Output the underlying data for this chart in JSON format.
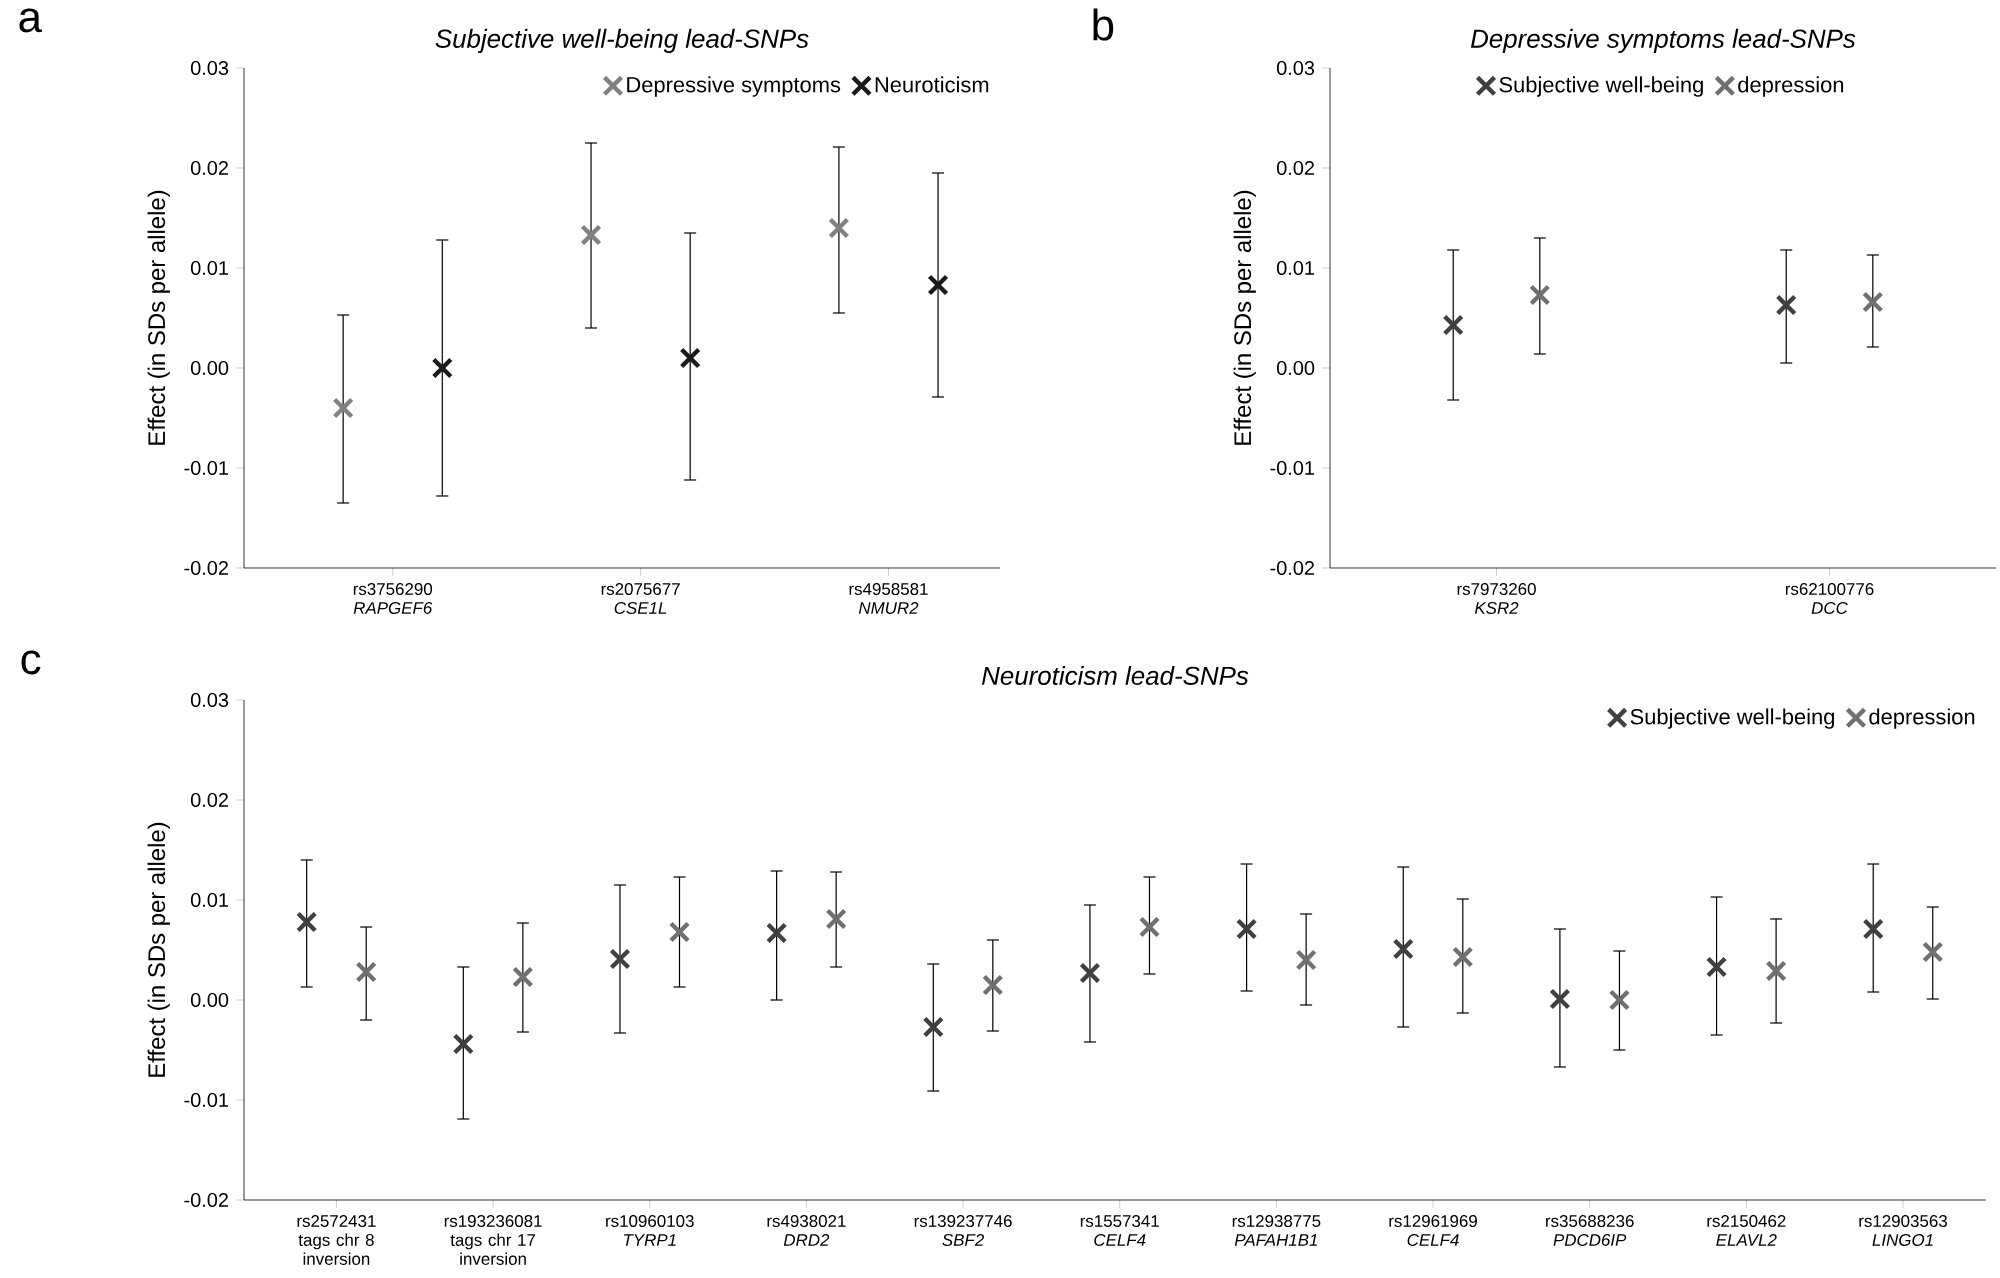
{
  "chart_data": [
    {
      "type": "scatter",
      "title": "Subjective well-being lead-SNPs",
      "ylabel": "Effect (in SDs per allele)",
      "annotations": [
        "a"
      ],
      "marker": "cross",
      "legend": "top right",
      "categories": [
        "rs3756290 *RAPGEF6*",
        "rs2075677 *CSE1L*",
        "rs4958581 *NMUR2*"
      ],
      "ylim": [
        -0.02,
        0.03
      ],
      "yticks": [
        {
          "value": -0.02,
          "label": "-0.02"
        },
        {
          "value": -0.01,
          "label": "-0.01"
        },
        {
          "value": 0,
          "label": "0.00"
        },
        {
          "value": 0.01,
          "label": "0.01"
        },
        {
          "value": 0.02,
          "label": "0.02"
        },
        {
          "value": 0.03,
          "label": "0.03"
        }
      ],
      "series": [
        {
          "name": "Depressive symptoms",
          "color": "#808080",
          "values": [
            -0.004,
            0.0133,
            0.014
          ],
          "errors": [
            [
              -0.0135,
              0.0053
            ],
            [
              0.004,
              0.0225
            ],
            [
              0.0055,
              0.0221
            ]
          ]
        },
        {
          "name": "Neuroticism",
          "color": "#1a1a1a",
          "values": [
            0.0,
            0.001,
            0.0083
          ],
          "errors": [
            [
              -0.0128,
              0.0128
            ],
            [
              -0.0112,
              0.0135
            ],
            [
              -0.0029,
              0.0195
            ]
          ]
        }
      ]
    },
    {
      "type": "scatter",
      "title": "Depressive symptoms lead-SNPs",
      "ylabel": "Effect (in SDs per allele)",
      "annotations": [
        "b"
      ],
      "marker": "cross",
      "legend": "top",
      "categories": [
        "rs7973260 *KSR2*",
        "rs62100776 *DCC*"
      ],
      "ylim": [
        -0.02,
        0.03
      ],
      "yticks": [
        {
          "value": -0.02,
          "label": "-0.02"
        },
        {
          "value": -0.01,
          "label": "-0.01"
        },
        {
          "value": 0,
          "label": "0.00"
        },
        {
          "value": 0.01,
          "label": "0.01"
        },
        {
          "value": 0.02,
          "label": "0.02"
        },
        {
          "value": 0.03,
          "label": "0.03"
        }
      ],
      "series": [
        {
          "name": "Subjective well-being",
          "color": "#404040",
          "values": [
            0.0043,
            0.0063
          ],
          "errors": [
            [
              -0.0032,
              0.0118
            ],
            [
              0.0005,
              0.0118
            ]
          ]
        },
        {
          "name": "depression",
          "color": "#707070",
          "values": [
            0.0073,
            0.0066
          ],
          "errors": [
            [
              0.0014,
              0.013
            ],
            [
              0.0021,
              0.0113
            ]
          ]
        }
      ]
    },
    {
      "type": "scatter",
      "title": "Neuroticism lead-SNPs",
      "ylabel": "Effect (in SDs per allele)",
      "annotations": [
        "c"
      ],
      "marker": "cross",
      "legend": "top right",
      "categories": [
        "rs2572431 tags chr 8 inversion",
        "rs193236081 tags chr 17 inversion",
        "rs10960103 *TYRP1*",
        "rs4938021 *DRD2*",
        "rs139237746 *SBF2*",
        "rs1557341 *CELF4*",
        "rs12938775 *PAFAH1B1*",
        "rs12961969 *CELF4*",
        "rs35688236 *PDCD6IP*",
        "rs2150462 *ELAVL2*",
        "rs12903563 *LINGO1*"
      ],
      "ylim": [
        -0.02,
        0.03
      ],
      "yticks": [
        {
          "value": -0.02,
          "label": "-0.02"
        },
        {
          "value": -0.01,
          "label": "-0.01"
        },
        {
          "value": 0,
          "label": "0.00"
        },
        {
          "value": 0.01,
          "label": "0.01"
        },
        {
          "value": 0.02,
          "label": "0.02"
        },
        {
          "value": 0.03,
          "label": "0.03"
        }
      ],
      "series": [
        {
          "name": "Subjective well-being",
          "color": "#404040",
          "values": [
            0.0078,
            -0.0044,
            0.0041,
            0.0067,
            -0.0027,
            0.0027,
            0.0071,
            0.0051,
            0.0001,
            0.0033,
            0.0071
          ],
          "errors": [
            [
              0.0013,
              0.014
            ],
            [
              -0.0119,
              0.0033
            ],
            [
              -0.0033,
              0.0115
            ],
            [
              0.0,
              0.0129
            ],
            [
              -0.0091,
              0.0036
            ],
            [
              -0.0042,
              0.0095
            ],
            [
              0.0009,
              0.0136
            ],
            [
              -0.0027,
              0.0133
            ],
            [
              -0.0067,
              0.0071
            ],
            [
              -0.0035,
              0.0103
            ],
            [
              0.0008,
              0.0136
            ]
          ]
        },
        {
          "name": "depression",
          "color": "#707070",
          "values": [
            0.0028,
            0.0023,
            0.0068,
            0.0081,
            0.0015,
            0.0073,
            0.004,
            0.0043,
            0.0,
            0.0029,
            0.0048
          ],
          "errors": [
            [
              -0.002,
              0.0073
            ],
            [
              -0.0032,
              0.0077
            ],
            [
              0.0013,
              0.0123
            ],
            [
              0.0033,
              0.0128
            ],
            [
              -0.0031,
              0.006
            ],
            [
              0.0026,
              0.0123
            ],
            [
              -0.0005,
              0.0086
            ],
            [
              -0.0013,
              0.0101
            ],
            [
              -0.005,
              0.0049
            ],
            [
              -0.0023,
              0.0081
            ],
            [
              0.0001,
              0.0093
            ]
          ]
        }
      ]
    }
  ]
}
